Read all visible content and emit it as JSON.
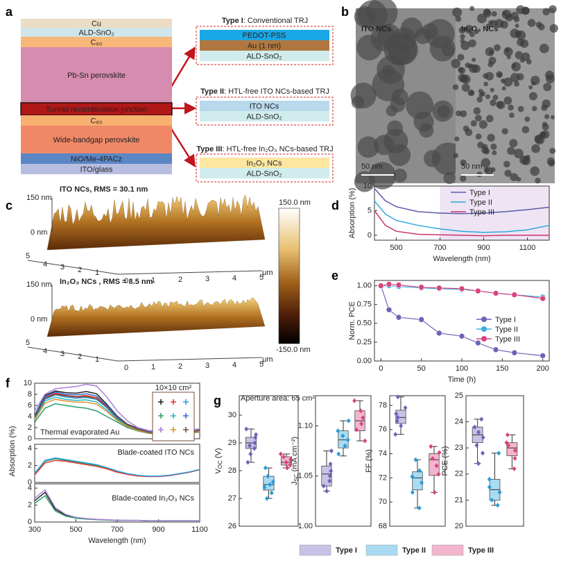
{
  "panel_labels": {
    "a": "a",
    "b": "b",
    "c": "c",
    "d": "d",
    "e": "e",
    "f": "f",
    "g": "g"
  },
  "stack": [
    "Cu",
    "ALD-SnO₂",
    "C₆₀",
    "Pb-Sn perovskite",
    "Tunnel recombination junction",
    "C₆₀",
    "Wide-bandgap perovskite",
    "NiO/Me-4PACz",
    "ITO/glass"
  ],
  "trj": [
    {
      "label": "Type I",
      "desc": ": Conventional TRJ",
      "layers": [
        "PEDOT-PSS",
        "Au (1 nm)",
        "ALD-SnO₂"
      ]
    },
    {
      "label": "Type II",
      "desc": ": HTL-free ITO NCs-based TRJ",
      "layers": [
        "ITO NCs",
        "ALD-SnO₂"
      ]
    },
    {
      "label": "Type III",
      "desc": ": HTL-free In₂O₃ NCs-based TRJ",
      "layers": [
        "In₂O₃ NCs",
        "ALD-SnO₂"
      ]
    }
  ],
  "tem": [
    {
      "label": "ITO NCs",
      "scale": "50 nm"
    },
    {
      "label": "In₂O₃ NCs",
      "scale": "50 nm"
    }
  ],
  "afm": {
    "maps": [
      {
        "title": "ITO NCs, RMS = 30.1 nm",
        "z_top": "150 nm",
        "z_zero": "0 nm"
      },
      {
        "title": "In₂O₃ NCs , RMS = 8.5 nm",
        "z_top": "150 nm",
        "z_zero": "0 nm"
      }
    ],
    "depth_ticks": [
      "5",
      "4",
      "3",
      "2",
      "1"
    ],
    "x_ticks": [
      "0",
      "1",
      "2",
      "3",
      "4",
      "5"
    ],
    "unit": "μm",
    "colorbar": [
      "150.0 nm",
      "-150.0 nm"
    ]
  },
  "chart_data": [
    {
      "type": "line",
      "xlabel": "Wavelength (nm)",
      "ylabel": "Absorption (%)",
      "x": [
        400,
        450,
        500,
        600,
        700,
        800,
        900,
        1000,
        1100,
        1200
      ],
      "xlim": [
        400,
        1200
      ],
      "xticks": [
        500,
        700,
        900,
        1100
      ],
      "ylim": [
        -1,
        10
      ],
      "yticks": [
        0,
        5,
        10
      ],
      "highlight": [
        700,
        1200
      ],
      "series": [
        {
          "name": "Type I",
          "color": "#5b5ba8",
          "values": [
            9.5,
            7,
            5.8,
            4.8,
            4.5,
            4.4,
            4.5,
            4.8,
            5.2,
            5.7
          ]
        },
        {
          "name": "Type II",
          "color": "#2aa8dc",
          "values": [
            7,
            4.3,
            3,
            2,
            1.3,
            0.8,
            0.6,
            0.7,
            1.1,
            2
          ]
        },
        {
          "name": "Type III",
          "color": "#c8336e",
          "values": [
            5,
            2,
            0.8,
            0.2,
            0.1,
            0,
            -0.1,
            0,
            0,
            0
          ]
        }
      ]
    },
    {
      "type": "line",
      "markers": true,
      "xlabel": "Time (h)",
      "ylabel": "Norm. PCE",
      "x": [
        0,
        10,
        22,
        50,
        72,
        100,
        120,
        142,
        165,
        200
      ],
      "xlim": [
        -8,
        208
      ],
      "xticks": [
        0,
        50,
        100,
        150,
        200
      ],
      "ylim": [
        0,
        1.07
      ],
      "yticks": [
        {
          "value": 0,
          "label": "0.00"
        },
        {
          "value": 0.25,
          "label": "0.25"
        },
        {
          "value": 0.5,
          "label": "0.50"
        },
        {
          "value": 0.75,
          "label": "0.75"
        },
        {
          "value": 1,
          "label": "1.00"
        }
      ],
      "series": [
        {
          "name": "Type I",
          "color": "#6a64b8",
          "values": [
            1,
            0.68,
            0.58,
            0.55,
            0.37,
            0.33,
            0.24,
            0.15,
            0.11,
            0.07
          ]
        },
        {
          "name": "Type II",
          "color": "#3aaee0",
          "values": [
            1,
            1,
            0.99,
            0.97,
            0.96,
            0.95,
            0.93,
            0.9,
            0.88,
            0.85
          ]
        },
        {
          "name": "Type III",
          "color": "#d8447e",
          "values": [
            1,
            1.02,
            1.01,
            0.98,
            0.97,
            0.96,
            0.93,
            0.9,
            0.88,
            0.83
          ]
        }
      ]
    },
    {
      "type": "line",
      "annotation": "Thermal evaporated Au",
      "legend_title": "10×10 cm²",
      "x": [
        300,
        350,
        400,
        450,
        500,
        550,
        600,
        650,
        700,
        750,
        800,
        850,
        900,
        950,
        1000,
        1050,
        1100
      ],
      "xlim": [
        300,
        1100
      ],
      "ylim": [
        0,
        10
      ],
      "yticks": [
        0,
        2,
        4,
        6,
        8,
        10
      ],
      "series": [
        {
          "color": "#222222",
          "values": [
            4.2,
            7.8,
            8.6,
            8.3,
            8.2,
            8.5,
            8.1,
            6.2,
            4.1,
            2.6,
            1.9,
            1.3,
            1.1,
            1.1,
            1.1,
            1.3,
            1.6
          ]
        },
        {
          "color": "#e8332e",
          "values": [
            4,
            7.4,
            8.2,
            7.8,
            7.6,
            7.8,
            7.4,
            5.8,
            3.9,
            2.5,
            1.8,
            1.2,
            1,
            1,
            1,
            1.2,
            1.5
          ]
        },
        {
          "color": "#29a3e0",
          "values": [
            3.8,
            7.1,
            7.9,
            7.5,
            7.3,
            7.4,
            7.1,
            5.6,
            3.7,
            2.4,
            1.7,
            1.2,
            1,
            1,
            1,
            1.2,
            1.4
          ]
        },
        {
          "color": "#2a9d6a",
          "values": [
            3,
            5.5,
            6.3,
            6,
            5.7,
            5.5,
            5,
            4,
            3,
            2,
            1.4,
            1,
            0.8,
            0.8,
            0.9,
            1,
            1.2
          ]
        },
        {
          "color": "#22b5c9",
          "values": [
            3.6,
            6.8,
            7.5,
            7.1,
            6.9,
            7,
            6.6,
            5.2,
            3.5,
            2.3,
            1.6,
            1.1,
            0.9,
            0.9,
            1,
            1.1,
            1.4
          ]
        },
        {
          "color": "#2b6fd8",
          "values": [
            4.1,
            7.6,
            8.4,
            8,
            7.9,
            8.1,
            7.7,
            6,
            4,
            2.5,
            1.8,
            1.3,
            1.1,
            1.1,
            1.1,
            1.3,
            1.6
          ]
        },
        {
          "color": "#a97fd8",
          "values": [
            5,
            8,
            9,
            9.2,
            9.4,
            9.8,
            9.5,
            7.5,
            5,
            3.2,
            2,
            1.5,
            1.3,
            1.3,
            1.4,
            1.6,
            1.8
          ]
        },
        {
          "color": "#e0902a",
          "values": [
            3.4,
            6.4,
            7.1,
            6.8,
            6.6,
            6.6,
            6.2,
            4.9,
            3.3,
            2.2,
            1.5,
            1.1,
            0.9,
            0.9,
            0.9,
            1.1,
            1.3
          ]
        },
        {
          "color": "#7a4b3a",
          "values": [
            3.9,
            7.3,
            8,
            7.7,
            7.5,
            7.6,
            7.2,
            5.7,
            3.8,
            2.5,
            1.7,
            1.2,
            1,
            1,
            1,
            1.2,
            1.5
          ]
        }
      ]
    },
    {
      "type": "line",
      "annotation": "Blade-coated ITO NCs",
      "ylabel": "Absorption (%)",
      "x": [
        300,
        350,
        400,
        450,
        500,
        550,
        600,
        650,
        700,
        750,
        800,
        850,
        900,
        950,
        1000,
        1050,
        1100
      ],
      "xlim": [
        300,
        1100
      ],
      "ylim": [
        0,
        4.5
      ],
      "yticks": [
        0,
        2,
        4
      ],
      "series": [
        {
          "color": "#2a9d6a",
          "values": [
            1,
            2.5,
            2.8,
            2.6,
            2.4,
            2.2,
            2,
            1.7,
            1.3,
            1,
            0.8,
            0.7,
            0.7,
            0.8,
            1,
            1.2,
            1.5
          ]
        },
        {
          "color": "#e8332e",
          "values": [
            0.9,
            2.3,
            2.6,
            2.5,
            2.3,
            2.1,
            1.9,
            1.6,
            1.2,
            0.95,
            0.75,
            0.7,
            0.7,
            0.8,
            1,
            1.2,
            1.5
          ]
        },
        {
          "color": "#29a3e0",
          "values": [
            1.1,
            2.6,
            2.9,
            2.7,
            2.5,
            2.3,
            2.1,
            1.75,
            1.35,
            1.05,
            0.85,
            0.75,
            0.75,
            0.85,
            1.05,
            1.25,
            1.55
          ]
        }
      ]
    },
    {
      "type": "line",
      "annotation": "Blade-coated In₂O₃ NCs",
      "xlabel": "Wavelength (nm)",
      "x": [
        300,
        350,
        400,
        450,
        500,
        550,
        600,
        650,
        700,
        750,
        800,
        850,
        900,
        950,
        1000,
        1050,
        1100
      ],
      "xlim": [
        300,
        1100
      ],
      "xticks": [
        300,
        500,
        700,
        900,
        1100
      ],
      "ylim": [
        0,
        4.5
      ],
      "yticks": [
        0,
        2,
        4
      ],
      "series": [
        {
          "color": "#222222",
          "values": [
            2.5,
            3.5,
            1.5,
            0.8,
            0.5,
            0.4,
            0.3,
            0.25,
            0.2,
            0.2,
            0.2,
            0.15,
            0.15,
            0.15,
            0.15,
            0.15,
            0.15
          ]
        },
        {
          "color": "#2a9d6a",
          "values": [
            2.2,
            3.1,
            1.3,
            0.7,
            0.45,
            0.35,
            0.28,
            0.22,
            0.2,
            0.18,
            0.18,
            0.15,
            0.15,
            0.15,
            0.15,
            0.15,
            0.15
          ]
        },
        {
          "color": "#a97fd8",
          "values": [
            2.8,
            3.8,
            1.7,
            0.9,
            0.55,
            0.42,
            0.32,
            0.26,
            0.22,
            0.2,
            0.2,
            0.16,
            0.16,
            0.16,
            0.16,
            0.16,
            0.16
          ]
        }
      ]
    },
    {
      "type": "box",
      "annotation": "Aperture area: 65 cm²",
      "categories": [
        "Type I",
        "Type II",
        "Type III"
      ],
      "colors": [
        "#c7c2e6",
        "#a9dcf2",
        "#f3b5cd"
      ],
      "point_colors": [
        "#6a64b8",
        "#2b9ad8",
        "#d8447e"
      ],
      "panels": [
        {
          "ylabel": [
            "V",
            "OC",
            " (V)"
          ],
          "ylim": [
            26,
            30.7
          ],
          "yticks": [
            26,
            27,
            28,
            29,
            30
          ],
          "boxes": [
            {
              "min": 28.3,
              "q1": 28.8,
              "median": 29,
              "q3": 29.2,
              "max": 29.5,
              "points": [
                29.5,
                29.3,
                29.2,
                29,
                28.9,
                28.8,
                28.6,
                28.3
              ]
            },
            {
              "min": 27,
              "q1": 27.3,
              "median": 27.5,
              "q3": 27.8,
              "max": 28.1,
              "points": [
                28.1,
                27.8,
                27.6,
                27.5,
                27.4,
                27.2,
                27
              ]
            },
            {
              "min": 28.1,
              "q1": 28.2,
              "median": 28.3,
              "q3": 28.5,
              "max": 28.6,
              "points": [
                28.6,
                28.5,
                28.4,
                28.3,
                28.2,
                28.1
              ]
            }
          ]
        },
        {
          "ylabel": [
            "J",
            "SC",
            " (mA cm⁻²)"
          ],
          "ylim": [
            1,
            1.13
          ],
          "yticks": [
            {
              "value": 1,
              "label": "1.00"
            },
            {
              "value": 1.05,
              "label": "1.05"
            },
            {
              "value": 1.1,
              "label": "1.10"
            }
          ],
          "boxes": [
            {
              "min": 1.035,
              "q1": 1.04,
              "median": 1.052,
              "q3": 1.06,
              "max": 1.075,
              "points": [
                1.075,
                1.062,
                1.055,
                1.05,
                1.045,
                1.04,
                1.035
              ]
            },
            {
              "min": 1.07,
              "q1": 1.078,
              "median": 1.086,
              "q3": 1.095,
              "max": 1.105,
              "points": [
                1.105,
                1.095,
                1.09,
                1.086,
                1.08,
                1.072
              ]
            },
            {
              "min": 1.085,
              "q1": 1.095,
              "median": 1.105,
              "q3": 1.115,
              "max": 1.125,
              "points": [
                1.125,
                1.115,
                1.108,
                1.102,
                1.096,
                1.085
              ]
            }
          ]
        },
        {
          "ylabel": [
            "FF (%)"
          ],
          "ylim": [
            68,
            78.8
          ],
          "yticks": [
            68,
            70,
            72,
            74,
            76,
            78
          ],
          "boxes": [
            {
              "min": 75.6,
              "q1": 76.5,
              "median": 77,
              "q3": 77.6,
              "max": 78.7,
              "points": [
                78.7,
                77.8,
                77.3,
                77,
                76.7,
                76.3,
                75.6
              ]
            },
            {
              "min": 69.5,
              "q1": 71,
              "median": 72,
              "q3": 72.5,
              "max": 73.5,
              "points": [
                73.5,
                72.6,
                72.1,
                71.6,
                70.8,
                69.5
              ]
            },
            {
              "min": 70.8,
              "q1": 72.2,
              "median": 73.5,
              "q3": 74,
              "max": 74.6,
              "points": [
                74.6,
                74.1,
                73.6,
                73,
                72.3,
                70.8
              ]
            }
          ]
        },
        {
          "ylabel": [
            "PCE (%)"
          ],
          "ylim": [
            20,
            25
          ],
          "yticks": [
            20,
            21,
            22,
            23,
            24,
            25
          ],
          "boxes": [
            {
              "min": 22.4,
              "q1": 23.2,
              "median": 23.5,
              "q3": 23.8,
              "max": 24.1,
              "points": [
                24.1,
                23.8,
                23.6,
                23.4,
                23.1,
                22.8,
                22.4
              ]
            },
            {
              "min": 20.8,
              "q1": 21,
              "median": 21.4,
              "q3": 21.8,
              "max": 22.8,
              "points": [
                22.8,
                21.8,
                21.5,
                21.3,
                21,
                20.8
              ]
            },
            {
              "min": 22.2,
              "q1": 22.7,
              "median": 23,
              "q3": 23.2,
              "max": 23.5,
              "points": [
                23.5,
                23.2,
                23.1,
                22.9,
                22.6,
                22.2
              ]
            }
          ]
        }
      ]
    }
  ]
}
